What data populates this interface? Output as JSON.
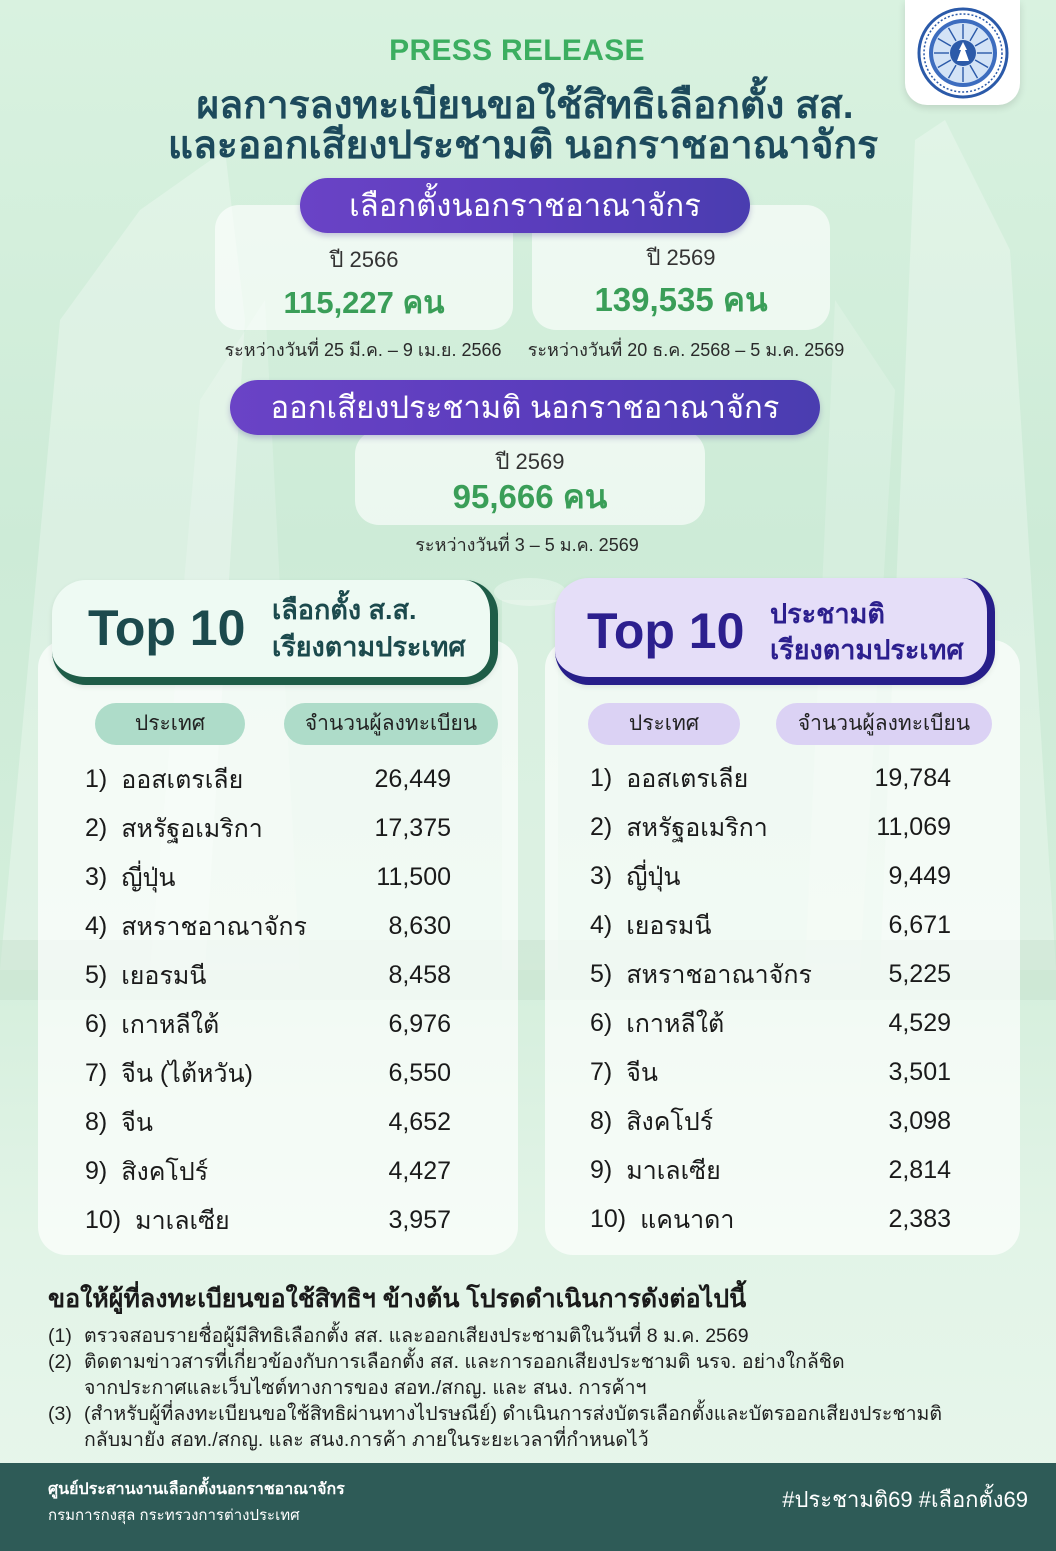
{
  "header": {
    "kicker": "PRESS RELEASE",
    "title_line1": "ผลการลงทะเบียนขอใช้สิทธิเลือกตั้ง สส.",
    "title_line2": "และออกเสียงประชามติ นอกราชอาณาจักร",
    "seal_icon": "ministry-seal-icon"
  },
  "election_summary": {
    "label": "เลือกตั้งนอกราชอาณาจักร",
    "periods": [
      {
        "year": "ปี 2566",
        "count": "115,227 คน",
        "dates": "ระหว่างวันที่ 25 มี.ค. – 9 เม.ย. 2566"
      },
      {
        "year": "ปี 2569",
        "count": "139,535 คน",
        "dates": "ระหว่างวันที่ 20 ธ.ค. 2568 – 5 ม.ค. 2569"
      }
    ]
  },
  "referendum_summary": {
    "label": "ออกเสียงประชามติ นอกราชอาณาจักร",
    "year": "ปี 2569",
    "count": "95,666 คน",
    "dates": "ระหว่างวันที่ 3 – 5 ม.ค. 2569"
  },
  "top10_election": {
    "heading": "Top 10",
    "subtitle_line1": "เลือกตั้ง ส.ส.",
    "subtitle_line2": "เรียงตามประเทศ",
    "col_country": "ประเทศ",
    "col_count": "จำนวนผู้ลงทะเบียน",
    "rows": [
      {
        "rank": "1)",
        "country": "ออสเตรเลีย",
        "count": "26,449"
      },
      {
        "rank": "2)",
        "country": "สหรัฐอเมริกา",
        "count": "17,375"
      },
      {
        "rank": "3)",
        "country": "ญี่ปุ่น",
        "count": "11,500"
      },
      {
        "rank": "4)",
        "country": "สหราชอาณาจักร",
        "count": "8,630"
      },
      {
        "rank": "5)",
        "country": "เยอรมนี",
        "count": "8,458"
      },
      {
        "rank": "6)",
        "country": "เกาหลีใต้",
        "count": "6,976"
      },
      {
        "rank": "7)",
        "country": "จีน (ไต้หวัน)",
        "count": "6,550"
      },
      {
        "rank": "8)",
        "country": "จีน",
        "count": "4,652"
      },
      {
        "rank": "9)",
        "country": "สิงคโปร์",
        "count": "4,427"
      },
      {
        "rank": "10)",
        "country": "มาเลเซีย",
        "count": "3,957"
      }
    ]
  },
  "top10_referendum": {
    "heading": "Top 10",
    "subtitle_line1": "ประชามติ",
    "subtitle_line2": "เรียงตามประเทศ",
    "col_country": "ประเทศ",
    "col_count": "จำนวนผู้ลงทะเบียน",
    "rows": [
      {
        "rank": "1)",
        "country": "ออสเตรเลีย",
        "count": "19,784"
      },
      {
        "rank": "2)",
        "country": "สหรัฐอเมริกา",
        "count": "11,069"
      },
      {
        "rank": "3)",
        "country": "ญี่ปุ่น",
        "count": "9,449"
      },
      {
        "rank": "4)",
        "country": "เยอรมนี",
        "count": "6,671"
      },
      {
        "rank": "5)",
        "country": "สหราชอาณาจักร",
        "count": "5,225"
      },
      {
        "rank": "6)",
        "country": "เกาหลีใต้",
        "count": "4,529"
      },
      {
        "rank": "7)",
        "country": "จีน",
        "count": "3,501"
      },
      {
        "rank": "8)",
        "country": "สิงคโปร์",
        "count": "3,098"
      },
      {
        "rank": "9)",
        "country": "มาเลเซีย",
        "count": "2,814"
      },
      {
        "rank": "10)",
        "country": "แคนาดา",
        "count": "2,383"
      }
    ]
  },
  "instructions": {
    "heading": "ขอให้ผู้ที่ลงทะเบียนขอใช้สิทธิฯ ข้างต้น โปรดดำเนินการดังต่อไปนี้",
    "items": [
      {
        "number": "(1)",
        "lines": [
          "ตรวจสอบรายชื่อผู้มีสิทธิเลือกตั้ง สส. และออกเสียงประชามติในวันที่ 8 ม.ค. 2569"
        ]
      },
      {
        "number": "(2)",
        "lines": [
          "ติดตามข่าวสารที่เกี่ยวข้องกับการเลือกตั้ง สส. และการออกเสียงประชามติ นรจ. อย่างใกล้ชิด",
          "จากประกาศและเว็บไซต์ทางการของ สอท./สกญ. และ สนง. การค้าฯ"
        ]
      },
      {
        "number": "(3)",
        "lines": [
          "(สำหรับผู้ที่ลงทะเบียนขอใช้สิทธิผ่านทางไปรษณีย์) ดำเนินการส่งบัตรเลือกตั้งและบัตรออกเสียงประชามติ",
          "กลับมายัง สอท./สกญ. และ สนง.การค้า ภายในระยะเวลาที่กำหนดไว้"
        ]
      }
    ]
  },
  "footer": {
    "org_line1": "ศูนย์ประสานงานเลือกตั้งนอกราชอาณาจักร",
    "org_line2": "กรมการกงสุล กระทรวงการต่างประเทศ",
    "hashtags": "#ประชามติ69 #เลือกตั้ง69"
  },
  "colors": {
    "background": "#d6f0de",
    "kicker_green": "#3cae60",
    "count_green": "#3a9e58",
    "title": "#1d4a5c",
    "section_pill_purple": "#5b3dbd",
    "election_theme": "#1e5c47",
    "referendum_theme": "#271e8a",
    "footer": "#2e5b57"
  }
}
